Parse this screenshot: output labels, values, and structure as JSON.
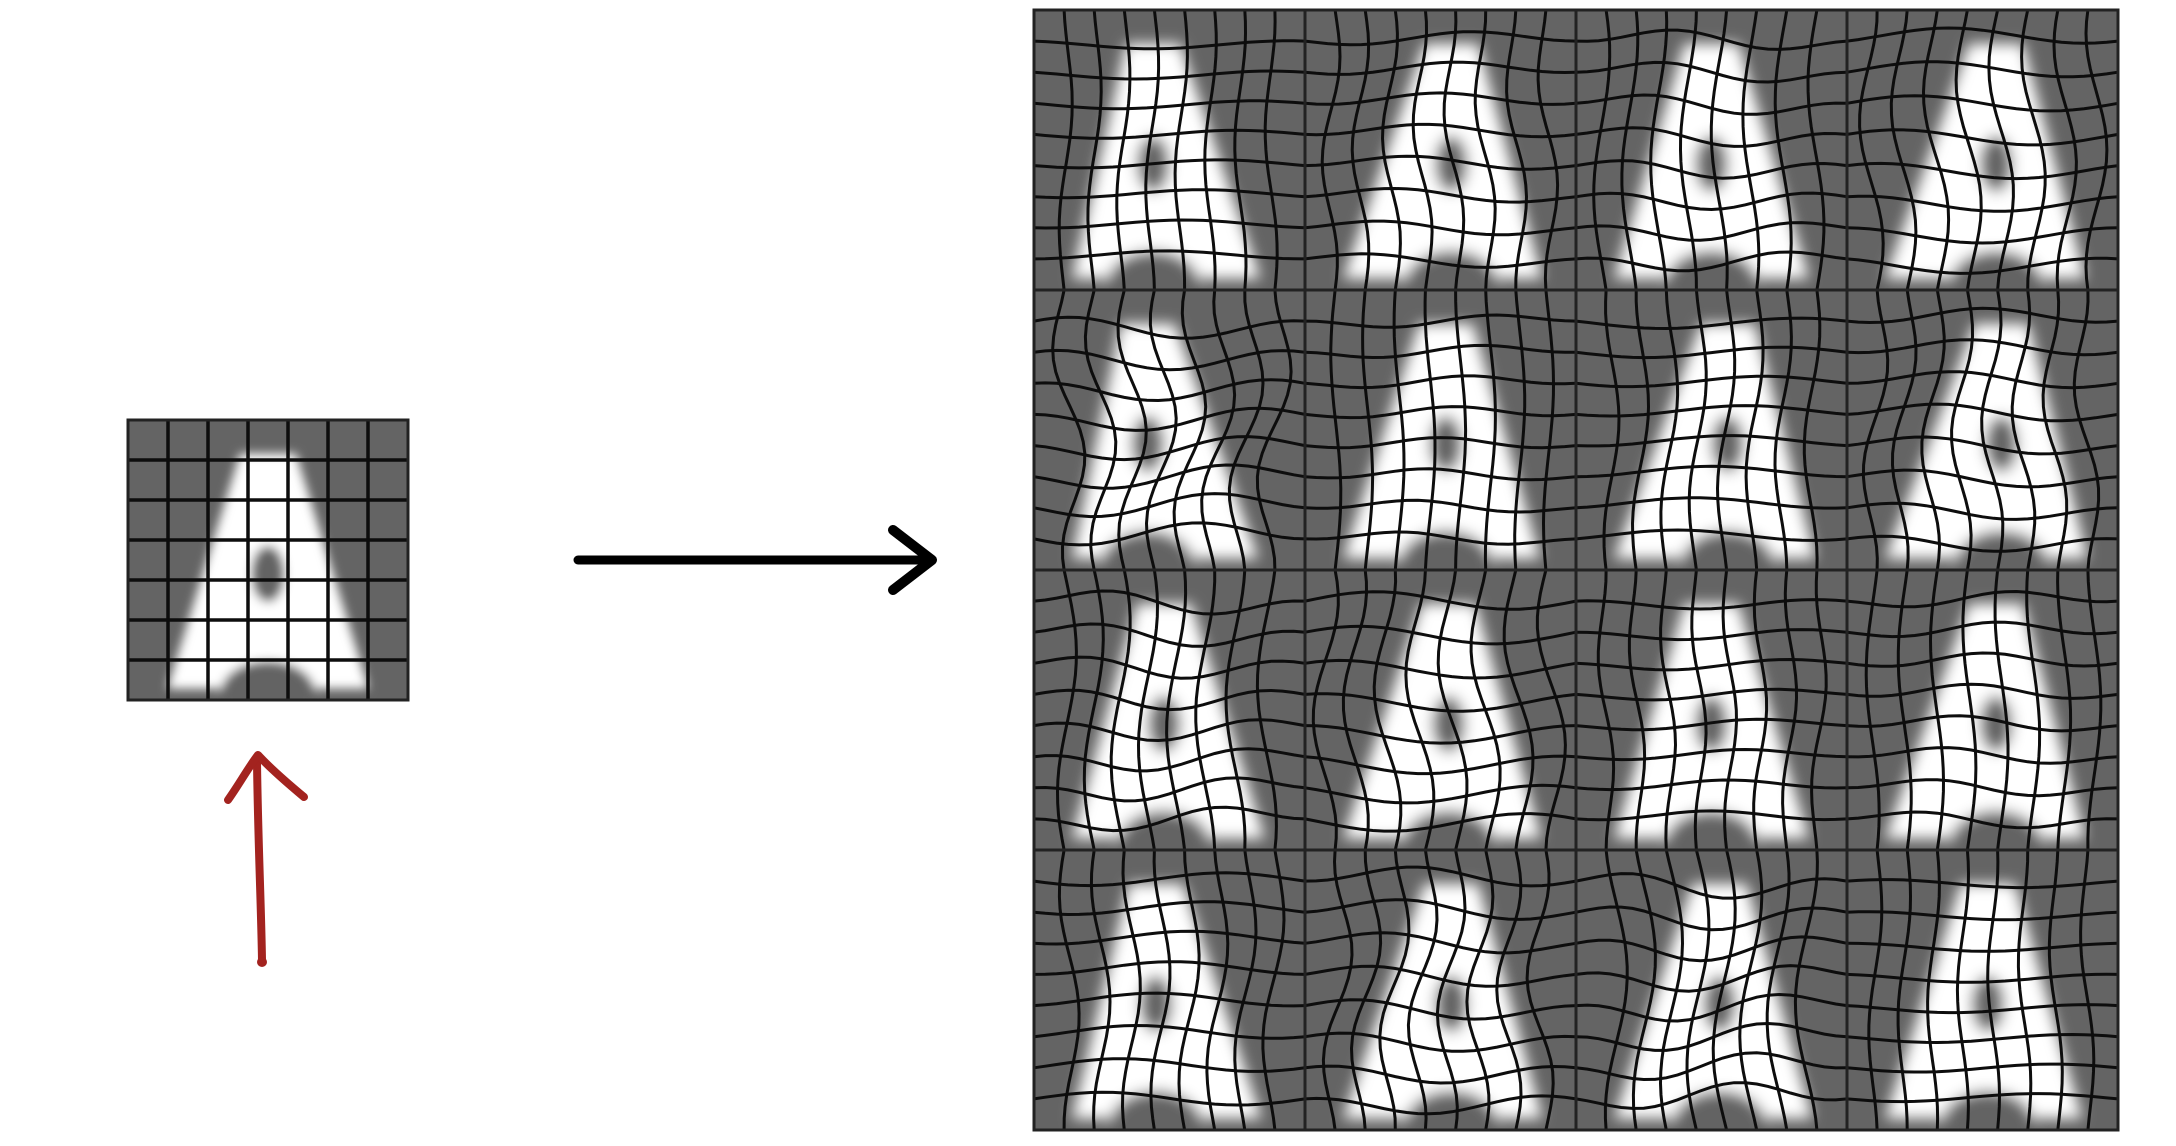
{
  "figure": {
    "source_letter": "A",
    "source_grid": {
      "cols": 7,
      "rows": 7
    },
    "augmented_grid": {
      "rows": 4,
      "cols": 4,
      "cell_grid": 9
    },
    "colors": {
      "background": "#ffffff",
      "cell_bg": "#646464",
      "letter": "#ffffff",
      "grid": "#0d0d0d",
      "arrow": "#000000",
      "annotation_arrow": "#a3231f"
    },
    "icons": {
      "transform_arrow": "right-arrow-icon",
      "annotation": "up-arrow-icon"
    }
  }
}
